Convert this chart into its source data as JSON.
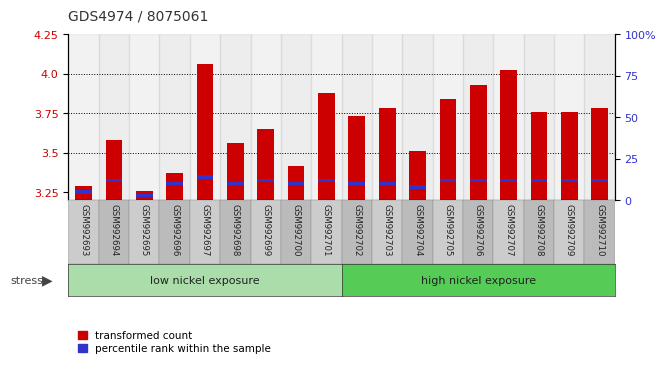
{
  "title": "GDS4974 / 8075061",
  "samples": [
    "GSM992693",
    "GSM992694",
    "GSM992695",
    "GSM992696",
    "GSM992697",
    "GSM992698",
    "GSM992699",
    "GSM992700",
    "GSM992701",
    "GSM992702",
    "GSM992703",
    "GSM992704",
    "GSM992705",
    "GSM992706",
    "GSM992707",
    "GSM992708",
    "GSM992709",
    "GSM992710"
  ],
  "red_values": [
    3.29,
    3.58,
    3.26,
    3.37,
    4.06,
    3.56,
    3.65,
    3.42,
    3.88,
    3.73,
    3.78,
    3.51,
    3.84,
    3.93,
    4.02,
    3.76,
    3.76,
    3.78
  ],
  "blue_percentiles": [
    5,
    12,
    3,
    10,
    14,
    10,
    12,
    10,
    12,
    10,
    10,
    8,
    12,
    12,
    12,
    12,
    12,
    12
  ],
  "ylim_left": [
    3.2,
    4.25
  ],
  "ylim_right": [
    0,
    100
  ],
  "yticks_left": [
    3.25,
    3.5,
    3.75,
    4.0,
    4.25
  ],
  "yticks_right": [
    0,
    25,
    50,
    75,
    100
  ],
  "bar_color_red": "#CC0000",
  "bar_color_blue": "#3333CC",
  "base": 3.2,
  "low_nickel_count": 9,
  "group_labels": [
    "low nickel exposure",
    "high nickel exposure"
  ],
  "low_color": "#AADDAA",
  "high_color": "#55CC55",
  "legend_labels": [
    "transformed count",
    "percentile rank within the sample"
  ],
  "stress_label": "stress",
  "col_colors": [
    "#CCCCCC",
    "#BBBBBB"
  ],
  "bar_width": 0.55
}
